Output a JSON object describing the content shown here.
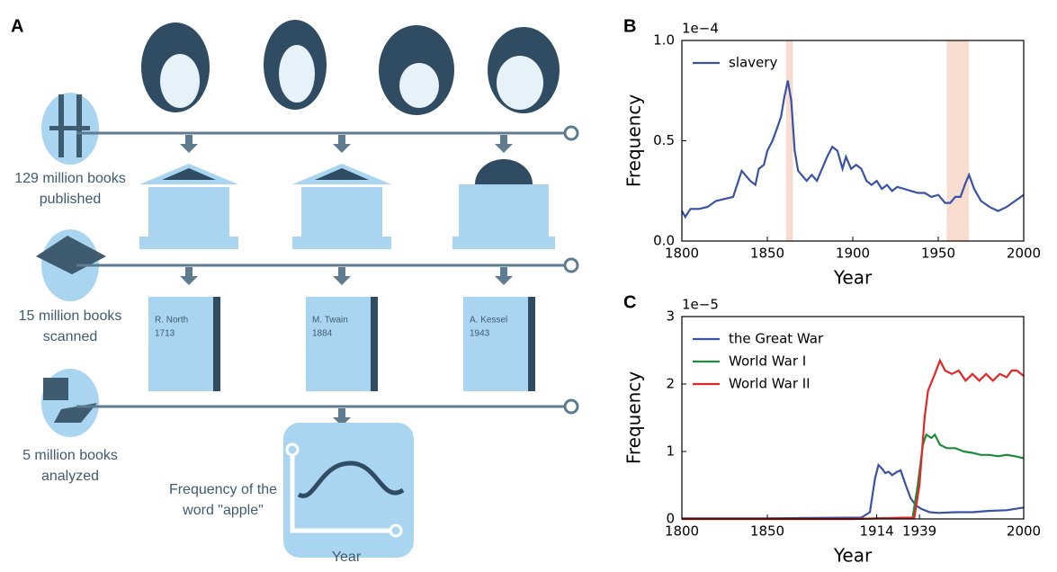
{
  "panel_a": {
    "panel_label": "A",
    "published_label": [
      "129 million books",
      "published"
    ],
    "scanned_label": [
      "15 million books",
      "scanned"
    ],
    "analyzed_label": [
      "5 million books",
      "analyzed"
    ],
    "books": [
      {
        "author": "R. North",
        "year": "1713"
      },
      {
        "author": "M. Twain",
        "year": "1884"
      },
      {
        "author": "A. Kessel",
        "year": "1943"
      }
    ],
    "plot_label": [
      "Frequency of the",
      "word \"apple\""
    ],
    "plot_axis_label": "Year"
  },
  "chart_data": [
    {
      "type": "line",
      "panel_label": "B",
      "scale_label": "1e−4",
      "xlabel": "Year",
      "ylabel": "Frequency",
      "xlim": [
        1800,
        2000
      ],
      "xticks": [
        1800,
        1850,
        1900,
        1950,
        2000
      ],
      "ylim": [
        0,
        1
      ],
      "yticks": [
        {
          "value": 0,
          "label": "0.0"
        },
        0.5,
        {
          "value": 1,
          "label": "1.0"
        }
      ],
      "legend": "upper left",
      "highlight_spans": [
        {
          "range": [
            1861,
            1865
          ],
          "color": "#f8dccf"
        },
        {
          "range": [
            1955,
            1968
          ],
          "color": "#f8dccf"
        }
      ],
      "series": [
        {
          "name": "slavery",
          "color": "#3a52a4",
          "x": [
            1800,
            1802,
            1805,
            1810,
            1815,
            1820,
            1825,
            1830,
            1835,
            1840,
            1843,
            1845,
            1848,
            1850,
            1853,
            1856,
            1858,
            1860,
            1862,
            1864,
            1866,
            1868,
            1870,
            1873,
            1876,
            1879,
            1882,
            1885,
            1888,
            1891,
            1894,
            1896,
            1899,
            1902,
            1905,
            1908,
            1911,
            1914,
            1917,
            1920,
            1923,
            1926,
            1930,
            1934,
            1938,
            1942,
            1946,
            1950,
            1954,
            1957,
            1960,
            1963,
            1966,
            1968,
            1971,
            1975,
            1980,
            1985,
            1990,
            1995,
            2000
          ],
          "values": [
            0.15,
            0.12,
            0.16,
            0.16,
            0.17,
            0.2,
            0.21,
            0.22,
            0.35,
            0.3,
            0.28,
            0.36,
            0.38,
            0.45,
            0.5,
            0.57,
            0.62,
            0.72,
            0.8,
            0.7,
            0.45,
            0.35,
            0.33,
            0.3,
            0.33,
            0.3,
            0.36,
            0.42,
            0.47,
            0.45,
            0.36,
            0.42,
            0.36,
            0.38,
            0.36,
            0.3,
            0.28,
            0.3,
            0.26,
            0.28,
            0.25,
            0.27,
            0.26,
            0.25,
            0.24,
            0.24,
            0.22,
            0.23,
            0.19,
            0.19,
            0.22,
            0.22,
            0.29,
            0.33,
            0.26,
            0.2,
            0.17,
            0.15,
            0.17,
            0.2,
            0.23
          ]
        }
      ]
    },
    {
      "type": "line",
      "panel_label": "C",
      "scale_label": "1e−5",
      "xlabel": "Year",
      "ylabel": "Frequency",
      "xlim": [
        1800,
        2000
      ],
      "xticks": [
        1800,
        1850,
        1914,
        1939,
        2000
      ],
      "ylim": [
        0,
        3
      ],
      "yticks": [
        0,
        1,
        2,
        3
      ],
      "legend": "upper left",
      "series": [
        {
          "name": "the Great War",
          "color": "#3a52a4",
          "x": [
            1800,
            1850,
            1905,
            1910,
            1913,
            1915,
            1917,
            1919,
            1921,
            1923,
            1926,
            1928,
            1931,
            1934,
            1937,
            1940,
            1945,
            1950,
            1960,
            1970,
            1980,
            1990,
            2000
          ],
          "values": [
            0.01,
            0.01,
            0.02,
            0.1,
            0.6,
            0.8,
            0.75,
            0.68,
            0.7,
            0.65,
            0.7,
            0.72,
            0.5,
            0.3,
            0.2,
            0.15,
            0.1,
            0.09,
            0.1,
            0.1,
            0.12,
            0.13,
            0.17
          ]
        },
        {
          "name": "World War I",
          "color": "#1e8a3c",
          "x": [
            1800,
            1850,
            1900,
            1935,
            1938,
            1941,
            1943,
            1946,
            1948,
            1951,
            1955,
            1960,
            1965,
            1970,
            1975,
            1980,
            1985,
            1990,
            1995,
            2000
          ],
          "values": [
            0,
            0,
            0,
            0.02,
            0.5,
            1.1,
            1.25,
            1.2,
            1.25,
            1.1,
            1.05,
            1.05,
            1,
            0.98,
            0.95,
            0.95,
            0.93,
            0.95,
            0.93,
            0.9
          ]
        },
        {
          "name": "World War II",
          "color": "#e32626",
          "x": [
            1800,
            1850,
            1900,
            1936,
            1939,
            1942,
            1944,
            1948,
            1951,
            1954,
            1958,
            1962,
            1966,
            1970,
            1974,
            1978,
            1982,
            1986,
            1990,
            1993,
            1996,
            2000
          ],
          "values": [
            0,
            0,
            0,
            0.02,
            0.5,
            1.5,
            1.9,
            2.15,
            2.35,
            2.2,
            2.15,
            2.2,
            2.05,
            2.15,
            2.05,
            2.15,
            2.05,
            2.15,
            2.1,
            2.2,
            2.2,
            2.12
          ]
        }
      ]
    }
  ]
}
